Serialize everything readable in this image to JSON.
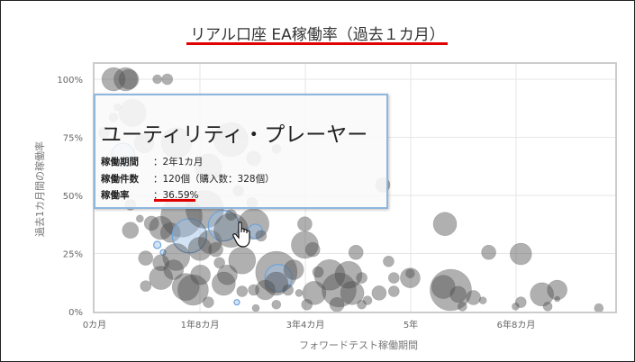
{
  "chart_data": {
    "type": "scatter",
    "title": "リアル口座 EA稼働率（過去１カ月）",
    "xlabel": "フォワードテスト稼働期間",
    "ylabel": "過去1カ月間の稼働率",
    "xlim": [
      0,
      99
    ],
    "ylim": [
      0,
      107
    ],
    "x_ticks": [
      {
        "value": 0,
        "label": "0カ月"
      },
      {
        "value": 20,
        "label": "1年8カ月"
      },
      {
        "value": 40,
        "label": "3年4カ月"
      },
      {
        "value": 60,
        "label": "5年"
      },
      {
        "value": 80,
        "label": "6年8カ月"
      }
    ],
    "y_ticks": [
      {
        "value": 0,
        "label": "0%"
      },
      {
        "value": 25,
        "label": "25%"
      },
      {
        "value": 50,
        "label": "50%"
      },
      {
        "value": 75,
        "label": "75%"
      },
      {
        "value": 100,
        "label": "100%"
      }
    ],
    "grid": true,
    "colors": {
      "gray": "#5a5a5a",
      "highlight": "#9cc2e8",
      "highlight_stroke": "#6fa3d8"
    },
    "points": [
      [
        3.6,
        100,
        13,
        0
      ],
      [
        5.9,
        100,
        13,
        0
      ],
      [
        6.5,
        100,
        11,
        0
      ],
      [
        11.9,
        100,
        5,
        0
      ],
      [
        13.8,
        100,
        6,
        0
      ],
      [
        7.2,
        85.5,
        15,
        0
      ],
      [
        4.3,
        88,
        4,
        0
      ],
      [
        3.6,
        83.6,
        5,
        0
      ],
      [
        1.8,
        77,
        6,
        0
      ],
      [
        9.4,
        72.6,
        11,
        0
      ],
      [
        15.5,
        72.6,
        17,
        0
      ],
      [
        25.9,
        74,
        19,
        0
      ],
      [
        21.6,
        62,
        15,
        0
      ],
      [
        30.2,
        66,
        8,
        0
      ],
      [
        34.5,
        70,
        5,
        0
      ],
      [
        27.3,
        52,
        6,
        0
      ],
      [
        5.4,
        67.4,
        13,
        1
      ],
      [
        54.7,
        54.5,
        8,
        0
      ],
      [
        6.8,
        46,
        6,
        0
      ],
      [
        6.8,
        35,
        9,
        0
      ],
      [
        8.6,
        40,
        4,
        0
      ],
      [
        10.8,
        38,
        8,
        0
      ],
      [
        12.6,
        36,
        13,
        0
      ],
      [
        16.5,
        41,
        23,
        0
      ],
      [
        14.4,
        34,
        11,
        0
      ],
      [
        18,
        32.6,
        19,
        1
      ],
      [
        11.9,
        28.7,
        4,
        1
      ],
      [
        13,
        25.5,
        3,
        1
      ],
      [
        9.7,
        23,
        8,
        0
      ],
      [
        12.6,
        21,
        9,
        0
      ],
      [
        15.5,
        23.5,
        15,
        0
      ],
      [
        15,
        18,
        11,
        0
      ],
      [
        12.6,
        14.5,
        13,
        0
      ],
      [
        9.7,
        11,
        6,
        0
      ],
      [
        17.3,
        10.6,
        15,
        0
      ],
      [
        18.7,
        9.3,
        17,
        0
      ],
      [
        20.1,
        15.8,
        11,
        0
      ],
      [
        21.6,
        4,
        6,
        0
      ],
      [
        20,
        27,
        13,
        0
      ],
      [
        20.9,
        44,
        21,
        0
      ],
      [
        21.9,
        30,
        13,
        0
      ],
      [
        23,
        26.7,
        8,
        0
      ],
      [
        23.7,
        21,
        6,
        0
      ],
      [
        24.5,
        37,
        17,
        1
      ],
      [
        25.9,
        35,
        19,
        0
      ],
      [
        30.2,
        37.7,
        17,
        0
      ],
      [
        30.5,
        34.5,
        8,
        1
      ],
      [
        31.6,
        32.6,
        6,
        0
      ],
      [
        29.9,
        46.8,
        6,
        0
      ],
      [
        25.9,
        41.6,
        6,
        0
      ],
      [
        27,
        4,
        3,
        1
      ],
      [
        28,
        22,
        15,
        0
      ],
      [
        25.2,
        15.8,
        11,
        0
      ],
      [
        24.5,
        12,
        13,
        0
      ],
      [
        28,
        8.7,
        6,
        0
      ],
      [
        30.2,
        9.3,
        6,
        0
      ],
      [
        30.6,
        1.5,
        4,
        0
      ],
      [
        34.5,
        17,
        23,
        0
      ],
      [
        34.9,
        14.5,
        15,
        1
      ],
      [
        34.5,
        12,
        13,
        0
      ],
      [
        32.4,
        9.3,
        11,
        0
      ],
      [
        34.5,
        3,
        5,
        0
      ],
      [
        37.8,
        18,
        11,
        0
      ],
      [
        36.7,
        9.3,
        6,
        0
      ],
      [
        38.8,
        8,
        4,
        0
      ],
      [
        39.9,
        37.7,
        8,
        0
      ],
      [
        39.9,
        28.7,
        15,
        0
      ],
      [
        41.4,
        26.7,
        8,
        0
      ],
      [
        42.4,
        17,
        6,
        0
      ],
      [
        44.6,
        15.8,
        17,
        0
      ],
      [
        41.7,
        8,
        13,
        0
      ],
      [
        40.3,
        3,
        6,
        0
      ],
      [
        46.4,
        9.3,
        19,
        0
      ],
      [
        48.2,
        15.8,
        15,
        0
      ],
      [
        48.9,
        8,
        13,
        0
      ],
      [
        46,
        3,
        8,
        0
      ],
      [
        50.7,
        14.5,
        6,
        0
      ],
      [
        49.6,
        25.5,
        8,
        0
      ],
      [
        50.7,
        3,
        5,
        0
      ],
      [
        51.8,
        4.8,
        5,
        0
      ],
      [
        54,
        8,
        8,
        0
      ],
      [
        55.8,
        21.6,
        6,
        0
      ],
      [
        56.8,
        14.5,
        6,
        0
      ],
      [
        56.8,
        8.7,
        6,
        0
      ],
      [
        59.9,
        14.5,
        11,
        0
      ],
      [
        59.9,
        16.4,
        5,
        0
      ],
      [
        66.5,
        37.7,
        13,
        0
      ],
      [
        66.2,
        10.6,
        13,
        0
      ],
      [
        67.6,
        9.3,
        23,
        0
      ],
      [
        69,
        7.4,
        9,
        0
      ],
      [
        69.8,
        2.2,
        5,
        0
      ],
      [
        71.9,
        6,
        8,
        0
      ],
      [
        73.7,
        4.8,
        4,
        0
      ],
      [
        74.8,
        25.5,
        8,
        0
      ],
      [
        80.9,
        24.8,
        12,
        0
      ],
      [
        80.9,
        4,
        6,
        0
      ],
      [
        79.9,
        2.2,
        4,
        0
      ],
      [
        84.9,
        7.4,
        13,
        0
      ],
      [
        87.8,
        9.3,
        11,
        0
      ],
      [
        87.8,
        5.4,
        3,
        0
      ],
      [
        86,
        2.2,
        5,
        0
      ],
      [
        95.7,
        1.5,
        5,
        0
      ]
    ],
    "points_format": [
      "x_months",
      "y_percent",
      "bubble_size",
      "highlighted"
    ]
  },
  "tooltip": {
    "title": "ユーティリティ・プレーヤー",
    "rows": [
      {
        "label": "稼働期間",
        "value": "：2年1カ月"
      },
      {
        "label": "稼働件数",
        "value": "：120個（購入数：328個）"
      },
      {
        "label": "稼働率",
        "value": "：36.59%"
      }
    ]
  }
}
